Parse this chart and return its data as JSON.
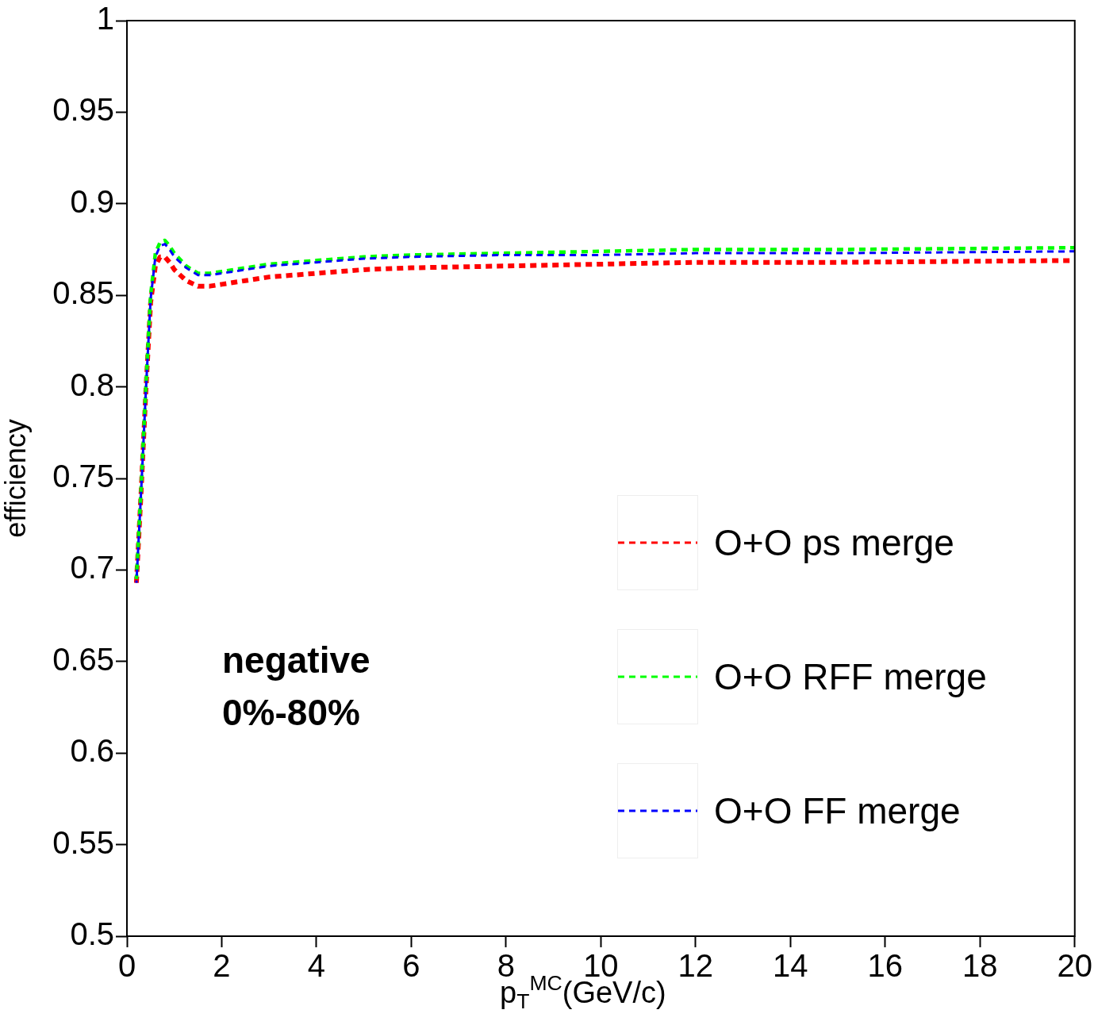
{
  "chart_data": {
    "type": "line",
    "xlabel": "p$_{T}$$^{MC}$(GeV/c)",
    "ylabel": "efficiency",
    "annotations": [
      "negative",
      "0%-80%"
    ],
    "x": [
      0.2,
      0.3,
      0.4,
      0.5,
      0.6,
      0.7,
      0.8,
      0.9,
      1.0,
      1.25,
      1.5,
      1.75,
      2,
      2.5,
      3,
      4,
      5,
      6,
      8,
      10,
      12,
      15,
      20
    ],
    "series": [
      {
        "name": "O+O ps merge",
        "color": "#ff0000",
        "values": [
          0.693,
          0.743,
          0.798,
          0.846,
          0.866,
          0.871,
          0.871,
          0.868,
          0.864,
          0.858,
          0.855,
          0.855,
          0.856,
          0.858,
          0.86,
          0.862,
          0.864,
          0.865,
          0.866,
          0.867,
          0.868,
          0.868,
          0.869
        ]
      },
      {
        "name": "O+O RFF merge",
        "color": "#00ff00",
        "values": [
          0.695,
          0.745,
          0.8,
          0.85,
          0.873,
          0.879,
          0.88,
          0.877,
          0.873,
          0.866,
          0.862,
          0.862,
          0.863,
          0.865,
          0.867,
          0.869,
          0.871,
          0.872,
          0.873,
          0.874,
          0.875,
          0.875,
          0.876
        ]
      },
      {
        "name": "O+O FF merge",
        "color": "#0000ff",
        "values": [
          0.693,
          0.743,
          0.798,
          0.848,
          0.871,
          0.877,
          0.878,
          0.875,
          0.871,
          0.865,
          0.861,
          0.861,
          0.862,
          0.864,
          0.866,
          0.868,
          0.87,
          0.871,
          0.872,
          0.872,
          0.873,
          0.873,
          0.874
        ]
      }
    ],
    "xlim": [
      0,
      20
    ],
    "xticks": [
      0,
      2,
      4,
      6,
      8,
      10,
      12,
      14,
      16,
      18,
      20
    ],
    "ylim": [
      0.5,
      1
    ],
    "yticks": [
      0.5,
      0.55,
      0.6,
      0.65,
      0.7,
      0.75,
      0.8,
      0.85,
      0.9,
      0.95,
      1
    ],
    "grid": false,
    "legend": "bottom right",
    "marker": "none",
    "line_style": "dashed"
  }
}
